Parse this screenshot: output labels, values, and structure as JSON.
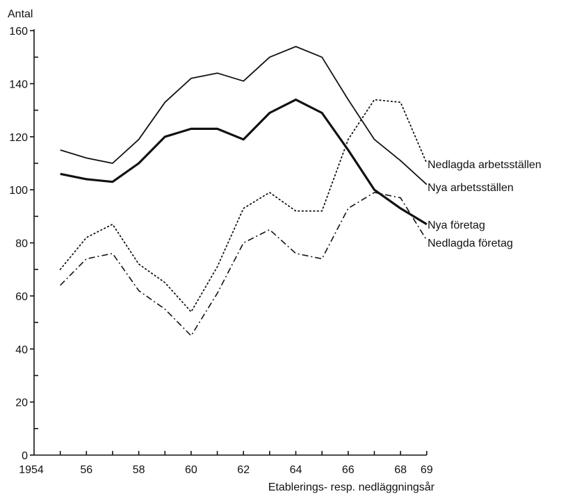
{
  "chart_data": {
    "type": "line",
    "title": "",
    "ylabel": "Antal",
    "xlabel": "Etablerings- resp. nedläggningsår",
    "ylim": [
      0,
      160
    ],
    "xlim": [
      1954,
      1969
    ],
    "grid": false,
    "y_ticks": [
      0,
      20,
      40,
      60,
      80,
      100,
      120,
      140,
      160
    ],
    "y_tick_labels": [
      "0",
      "20",
      "40",
      "60",
      "80",
      "100",
      "120",
      "140",
      "160"
    ],
    "x_ticks": [
      1954,
      1956,
      1958,
      1960,
      1962,
      1964,
      1966,
      1968,
      1969
    ],
    "x_tick_labels": [
      "1954",
      "56",
      "58",
      "60",
      "62",
      "64",
      "66",
      "68",
      "69"
    ],
    "x": [
      1955,
      1956,
      1957,
      1958,
      1959,
      1960,
      1961,
      1962,
      1963,
      1964,
      1965,
      1966,
      1967,
      1968,
      1969
    ],
    "series": [
      {
        "name": "Nya arbetsställen",
        "style": "solid-thin",
        "values": [
          115,
          112,
          110,
          119,
          133,
          142,
          144,
          141,
          150,
          154,
          150,
          134,
          119,
          111,
          102
        ]
      },
      {
        "name": "Nya företag",
        "style": "solid-thick",
        "values": [
          106,
          104,
          103,
          110,
          120,
          123,
          123,
          119,
          129,
          134,
          129,
          115,
          100,
          93,
          87
        ]
      },
      {
        "name": "Nedlagda arbetsställen",
        "style": "dotted",
        "values": [
          70,
          82,
          87,
          72,
          65,
          54,
          71,
          93,
          99,
          92,
          92,
          119,
          134,
          133,
          110
        ]
      },
      {
        "name": "Nedlagda företag",
        "style": "dash-dot",
        "values": [
          64,
          74,
          76,
          62,
          55,
          45,
          61,
          80,
          85,
          76,
          74,
          93,
          99,
          97,
          81
        ]
      }
    ]
  }
}
